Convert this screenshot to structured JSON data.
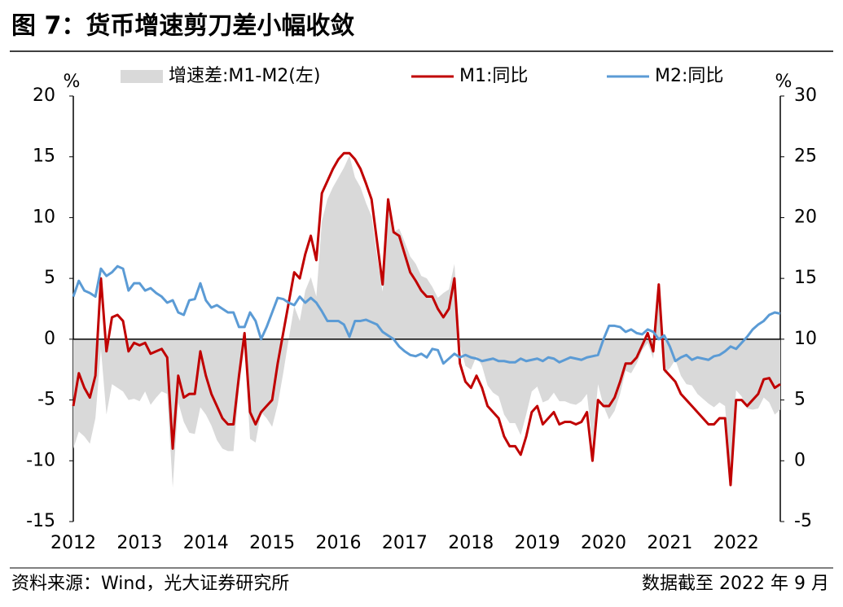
{
  "chart_data": {
    "type": "combo",
    "title": "图 7：货币增速剪刀差小幅收敛",
    "y_unit": "%",
    "y2_unit": "%",
    "source": "资料来源：Wind，光大证券研究所",
    "note": "数据截至 2022 年 9 月",
    "categories": [
      "2012",
      null,
      null,
      null,
      null,
      null,
      null,
      null,
      null,
      null,
      null,
      null,
      "2013",
      null,
      null,
      null,
      null,
      null,
      null,
      null,
      null,
      null,
      null,
      null,
      "2014",
      null,
      null,
      null,
      null,
      null,
      null,
      null,
      null,
      null,
      null,
      null,
      "2015",
      null,
      null,
      null,
      null,
      null,
      null,
      null,
      null,
      null,
      null,
      null,
      "2016",
      null,
      null,
      null,
      null,
      null,
      null,
      null,
      null,
      null,
      null,
      null,
      "2017",
      null,
      null,
      null,
      null,
      null,
      null,
      null,
      null,
      null,
      null,
      null,
      "2018",
      null,
      null,
      null,
      null,
      null,
      null,
      null,
      null,
      null,
      null,
      null,
      "2019",
      null,
      null,
      null,
      null,
      null,
      null,
      null,
      null,
      null,
      null,
      null,
      "2020",
      null,
      null,
      null,
      null,
      null,
      null,
      null,
      null,
      null,
      null,
      null,
      "2021",
      null,
      null,
      null,
      null,
      null,
      null,
      null,
      null,
      null,
      null,
      null,
      "2022",
      null,
      null,
      null,
      null,
      null,
      null,
      null,
      null
    ],
    "series": [
      {
        "name": "增速差:M1-M2(左)",
        "type": "area",
        "color": "#d9d9d9",
        "axis": "y",
        "values": [
          -9,
          -7.6,
          -8,
          -8.6,
          -6.5,
          -0.8,
          -6.2,
          -3.7,
          -4,
          -4.3,
          -5,
          -4.9,
          -5.1,
          -4.3,
          -5.4,
          -4.8,
          -4.3,
          -4.5,
          -12.2,
          -5.2,
          -6.8,
          -7.7,
          -7.8,
          -5.6,
          -6.2,
          -7.1,
          -8.3,
          -9,
          -9.2,
          -9.2,
          -4,
          -0.5,
          -8.2,
          -8.5,
          -6,
          -6.5,
          -7.2,
          -5.4,
          -2.8,
          0,
          2.7,
          1.5,
          4,
          5.1,
          3.5,
          9.7,
          11.5,
          12.5,
          13.3,
          14.1,
          15.1,
          13.3,
          12.5,
          11.2,
          10.1,
          6.8,
          3.9,
          11.2,
          8.8,
          9.1,
          8,
          6.8,
          6.2,
          5.2,
          5,
          4.3,
          3.4,
          3.8,
          4.1,
          6.2,
          -0.5,
          -2.2,
          -2.5,
          -1.4,
          -2.2,
          -3.8,
          -4.4,
          -4.7,
          -6.2,
          -6.9,
          -6.9,
          -7.9,
          -6.2,
          -4.3,
          -3.9,
          -5.2,
          -5,
          -4.4,
          -5.1,
          -5.1,
          -5.3,
          -5.4,
          -5.1,
          -4.5,
          -8.6,
          -3.7,
          -5.5,
          -6.6,
          -5.9,
          -4.5,
          -2.6,
          -2.8,
          -2,
          -0.9,
          -0.3,
          -1.6,
          4.5,
          -2.8,
          -2.4,
          -1.7,
          -3,
          -3.7,
          -3.8,
          -4.5,
          -4.9,
          -5.3,
          -5.6,
          -5.2,
          -5.5,
          -11.4,
          -4.2,
          -4.7,
          -5.7,
          -5.8,
          -5.7,
          -4.8,
          -5.2,
          -6.2,
          -5.8
        ]
      },
      {
        "name": "M1:同比",
        "type": "line",
        "color": "#c00000",
        "axis": "y2",
        "values": [
          4.5,
          7.2,
          6,
          5.2,
          7,
          15,
          9,
          11.8,
          12,
          11.5,
          9,
          9.7,
          9.5,
          9.7,
          8.8,
          9,
          9.2,
          8.5,
          1,
          7,
          5.2,
          5.5,
          5.5,
          9,
          7,
          5.5,
          4.5,
          3.5,
          3,
          3,
          7,
          10.5,
          4,
          3,
          4,
          4.5,
          5,
          8,
          10.5,
          13,
          15.5,
          15,
          17,
          18.5,
          16.5,
          22,
          23,
          24,
          24.8,
          25.3,
          25.3,
          24.8,
          24,
          22.8,
          21.5,
          18,
          14.5,
          21.5,
          18.8,
          18.5,
          17,
          15.5,
          14.8,
          14,
          13.5,
          13.5,
          12.5,
          11.8,
          12.5,
          15,
          8,
          6.5,
          6,
          7,
          6,
          4.5,
          4,
          3.5,
          2,
          1.2,
          1.2,
          0.5,
          2,
          4,
          4.5,
          3,
          3.5,
          4,
          3,
          3.2,
          3.2,
          3,
          3.2,
          4,
          0,
          5,
          4.5,
          4.5,
          5.2,
          6.5,
          8,
          8,
          8.5,
          9.5,
          10.5,
          9,
          14.5,
          7.5,
          7,
          6.5,
          5.5,
          5,
          4.5,
          4,
          3.5,
          3,
          3,
          3.5,
          3.5,
          -2,
          5,
          5,
          4.5,
          5,
          5.5,
          6.7,
          6.8,
          6,
          6.3
        ]
      },
      {
        "name": "M2:同比",
        "type": "line",
        "color": "#5b9bd5",
        "axis": "y2",
        "values": [
          13.5,
          14.8,
          14,
          13.8,
          13.5,
          15.8,
          15.2,
          15.5,
          16,
          15.8,
          14,
          14.6,
          14.6,
          14,
          14.2,
          13.8,
          13.5,
          13,
          13.2,
          12.2,
          12,
          13.2,
          13.3,
          14.6,
          13.2,
          12.6,
          12.8,
          12.5,
          12.2,
          12.2,
          11,
          11,
          12.2,
          11.5,
          10,
          11,
          12.2,
          13.4,
          13.3,
          13,
          12.8,
          13.5,
          13,
          13.4,
          13,
          12.3,
          11.5,
          11.5,
          11.5,
          11.2,
          10.2,
          11.5,
          11.5,
          11.6,
          11.4,
          11.2,
          10.6,
          10.3,
          10,
          9.4,
          9,
          8.7,
          8.6,
          8.8,
          8.5,
          9.2,
          9.1,
          8,
          8.4,
          8.8,
          8.5,
          8.7,
          8.5,
          8.4,
          8.2,
          8.3,
          8.4,
          8.2,
          8.2,
          8.1,
          8.1,
          8.4,
          8.2,
          8.3,
          8.4,
          8.2,
          8.5,
          8.4,
          8.1,
          8.3,
          8.5,
          8.4,
          8.3,
          8.5,
          8.6,
          8.7,
          10,
          11.1,
          11.1,
          11,
          10.6,
          10.8,
          10.5,
          10.4,
          10.8,
          10.6,
          10,
          10.3,
          9.4,
          8.2,
          8.5,
          8.7,
          8.3,
          8.5,
          8.4,
          8.3,
          8.6,
          8.7,
          9,
          9.4,
          9.2,
          9.7,
          10.2,
          10.8,
          11.2,
          11.5,
          12,
          12.2,
          12.1
        ]
      }
    ],
    "ylim": [
      -15,
      20
    ],
    "yticks": [
      -15,
      -10,
      -5,
      0,
      5,
      10,
      15,
      20
    ],
    "y2lim": [
      -5,
      30
    ],
    "y2ticks": [
      -5,
      0,
      5,
      10,
      15,
      20,
      25,
      30
    ],
    "grid": false
  }
}
